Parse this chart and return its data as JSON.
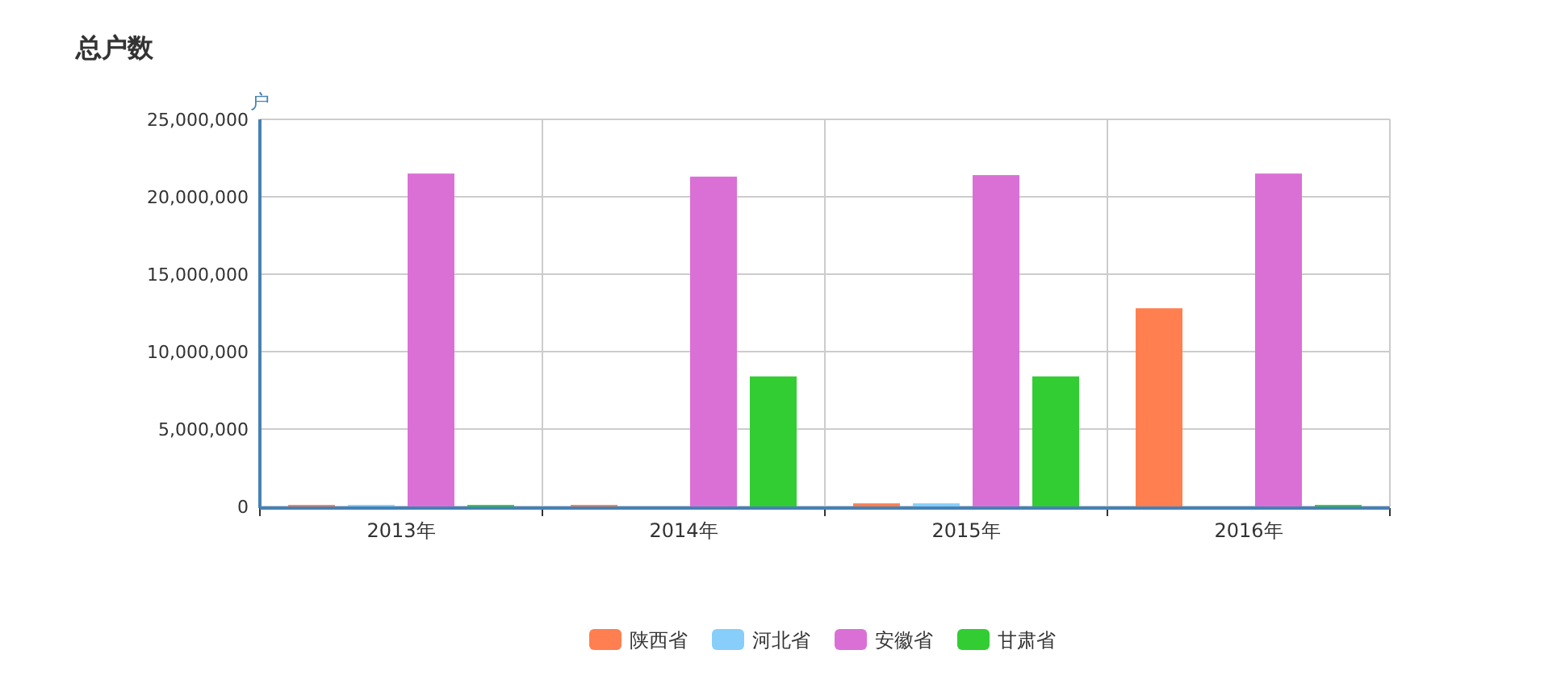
{
  "chart_data": {
    "type": "bar",
    "title": "总户数",
    "ylabel": "户",
    "categories": [
      "2013年",
      "2014年",
      "2015年",
      "2016年"
    ],
    "series": [
      {
        "name": "陕西省",
        "color": "#ff7f50",
        "values": [
          100000,
          100000,
          200000,
          12800000
        ]
      },
      {
        "name": "河北省",
        "color": "#87cefa",
        "values": [
          100000,
          0,
          200000,
          0
        ]
      },
      {
        "name": "安徽省",
        "color": "#da70d6",
        "values": [
          21500000,
          21300000,
          21400000,
          21500000
        ]
      },
      {
        "name": "甘肃省",
        "color": "#32cd32",
        "values": [
          100000,
          8400000,
          8400000,
          100000
        ]
      }
    ],
    "ylim": [
      0,
      25000000
    ],
    "yticks": [
      0,
      {
        "value": 5000000,
        "label": "5,000,000"
      },
      {
        "value": 10000000,
        "label": "10,000,000"
      },
      {
        "value": 15000000,
        "label": "15,000,000"
      },
      {
        "value": 20000000,
        "label": "20,000,000"
      },
      {
        "value": 25000000,
        "label": "25,000,000"
      }
    ],
    "grid": true,
    "legend": "bottom"
  }
}
